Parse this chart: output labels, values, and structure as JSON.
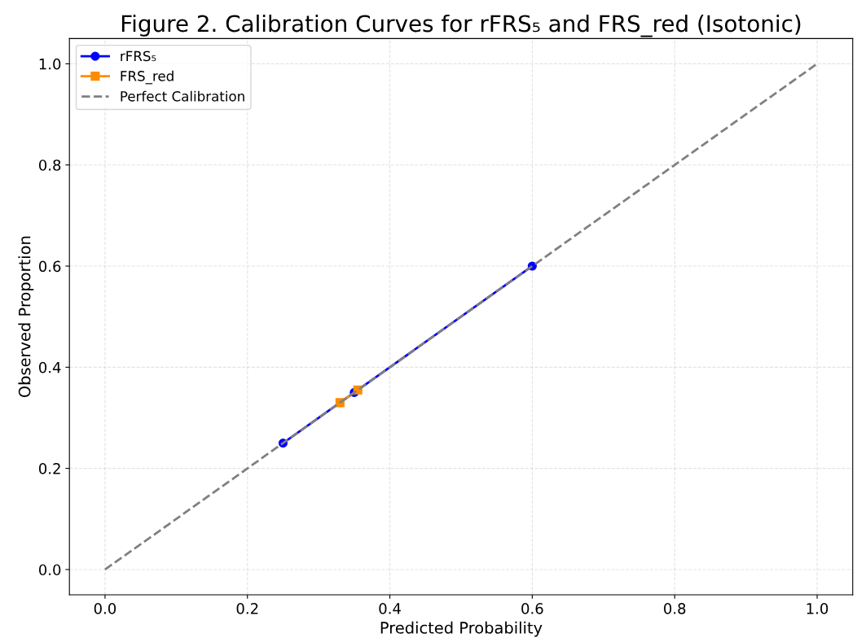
{
  "chart_data": {
    "type": "line",
    "title": "Figure 2. Calibration Curves for rFRS₅ and FRS_red (Isotonic)",
    "xlabel": "Predicted Probability",
    "ylabel": "Observed Proportion",
    "series": [
      {
        "name": "rFRS₅",
        "color": "#0000ff",
        "x": [
          0.25,
          0.35,
          0.6
        ],
        "values": [
          0.25,
          0.35,
          0.6
        ],
        "marker": "circle",
        "line_style": "solid"
      },
      {
        "name": "FRS_red",
        "color": "#ff8c00",
        "x": [
          0.33,
          0.355
        ],
        "values": [
          0.33,
          0.355
        ],
        "marker": "square",
        "line_style": "solid"
      },
      {
        "name": "Perfect Calibration",
        "color": "#808080",
        "x": [
          0,
          1
        ],
        "values": [
          0,
          1
        ],
        "marker": "none",
        "line_style": "dashed"
      }
    ],
    "xlim": [
      -0.05,
      1.05
    ],
    "ylim": [
      -0.05,
      1.05
    ],
    "xticks": [
      {
        "value": 0,
        "label": "0.0"
      },
      0.2,
      0.4,
      0.6,
      0.8,
      {
        "value": 1,
        "label": "1.0"
      }
    ],
    "yticks": [
      {
        "value": 0,
        "label": "0.0"
      },
      0.2,
      0.4,
      0.6,
      0.8,
      {
        "value": 1,
        "label": "1.0"
      }
    ],
    "grid": true,
    "legend": "top left"
  }
}
